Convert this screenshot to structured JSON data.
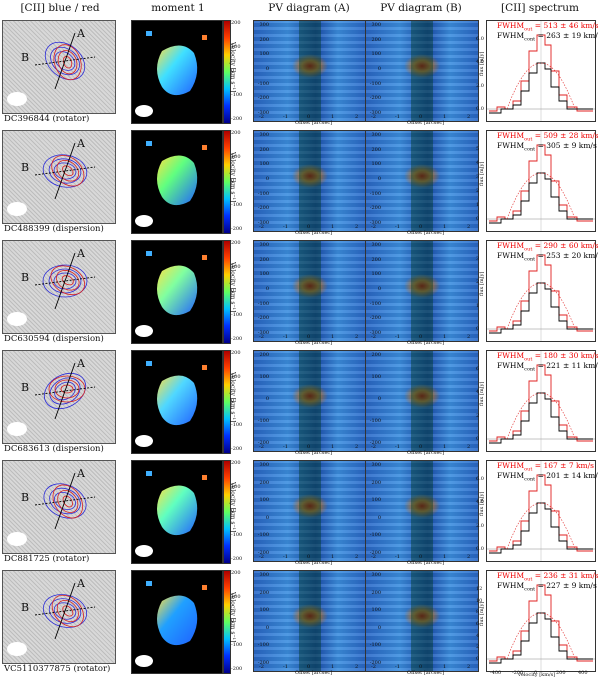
{
  "headers": {
    "col1": "[CII] blue / red",
    "col2": "moment 1",
    "col3": "PV diagram (A)",
    "col4": "PV diagram (B)",
    "col5": "[CII] spectrum"
  },
  "axes": {
    "velocity_label": "Velocity [km s⁻¹]",
    "offset_label": "Offset [arcsec]",
    "flux_label": "flux [mJy]",
    "spec_xlabel": "velocity [km/s]",
    "offset_ticks": [
      "-2",
      "-1",
      "0",
      "1",
      "2"
    ],
    "spec_xticks": [
      "-400",
      "-200",
      "0",
      "200",
      "400"
    ],
    "cbar_ticks": [
      "200",
      "100",
      "0",
      "-100",
      "-200"
    ]
  },
  "rows": [
    {
      "id": "DC396844",
      "type": "(rotator)",
      "label_a": "A",
      "label_b": "B",
      "fwhm_out_label": "FWHM",
      "fwhm_out_sub": "out",
      "fwhm_out": "= 513 ± 46 km/s",
      "fwhm_cont_label": "FWHM",
      "fwhm_cont_sub": "cont",
      "fwhm_cont": "= 263 ± 19 km/s",
      "pv_yticks": [
        "300",
        "200",
        "100",
        "0",
        "-100",
        "-200",
        "-300"
      ],
      "flux_ticks": [
        "6.0",
        "4.0",
        "2.0",
        "0.0"
      ]
    },
    {
      "id": "DC488399",
      "type": "(dispersion)",
      "label_a": "A",
      "label_b": "B",
      "fwhm_out_label": "FWHM",
      "fwhm_out_sub": "out",
      "fwhm_out": "= 509 ± 28 km/s",
      "fwhm_cont_label": "FWHM",
      "fwhm_cont_sub": "cont",
      "fwhm_cont": "= 305 ± 9 km/s",
      "pv_yticks": [
        "300",
        "200",
        "100",
        "0",
        "-100",
        "-200",
        "-300"
      ],
      "flux_ticks": [
        "5",
        "4",
        "3",
        "2",
        "1",
        "0"
      ]
    },
    {
      "id": "DC630594",
      "type": "(dispersion)",
      "label_a": "A",
      "label_b": "B",
      "fwhm_out_label": "FWHM",
      "fwhm_out_sub": "out",
      "fwhm_out": "= 290 ± 60 km/s",
      "fwhm_cont_label": "FWHM",
      "fwhm_cont_sub": "cont",
      "fwhm_cont": "= 253 ± 20 km/s",
      "pv_yticks": [
        "300",
        "200",
        "100",
        "0",
        "-100",
        "-200",
        "-300"
      ],
      "flux_ticks": [
        "3",
        "2",
        "1",
        "0"
      ]
    },
    {
      "id": "DC683613",
      "type": "(dispersion)",
      "label_a": "A",
      "label_b": "B",
      "fwhm_out_label": "FWHM",
      "fwhm_out_sub": "out",
      "fwhm_out": "= 180 ± 30 km/s",
      "fwhm_cont_label": "FWHM",
      "fwhm_cont_sub": "cont",
      "fwhm_cont": "= 221 ± 11 km/s",
      "pv_yticks": [
        "200",
        "100",
        "0",
        "-100",
        "-200"
      ],
      "flux_ticks": [
        "6",
        "4",
        "2",
        "0"
      ]
    },
    {
      "id": "DC881725",
      "type": "(rotator)",
      "label_a": "A",
      "label_b": "B",
      "fwhm_out_label": "FWHM",
      "fwhm_out_sub": "out",
      "fwhm_out": "= 167 ± 7 km/s",
      "fwhm_cont_label": "FWHM",
      "fwhm_cont_sub": "cont",
      "fwhm_cont": "= 201 ± 14 km/s",
      "pv_yticks": [
        "300",
        "200",
        "100",
        "0",
        "-100",
        "-200"
      ],
      "flux_ticks": [
        "6.0",
        "4.0",
        "2.0",
        "0.0"
      ]
    },
    {
      "id": "VC5110377875",
      "type": "(rotator)",
      "label_a": "A",
      "label_b": "B",
      "fwhm_out_label": "FWHM",
      "fwhm_out_sub": "out",
      "fwhm_out": "= 236 ± 31 km/s",
      "fwhm_cont_label": "FWHM",
      "fwhm_cont_sub": "cont",
      "fwhm_cont": "= 227 ± 9 km/s",
      "pv_yticks": [
        "300",
        "200",
        "100",
        "0",
        "-100",
        "-200"
      ],
      "flux_ticks": [
        "12",
        "10",
        "8",
        "6",
        "4",
        "2",
        "0"
      ]
    }
  ]
}
